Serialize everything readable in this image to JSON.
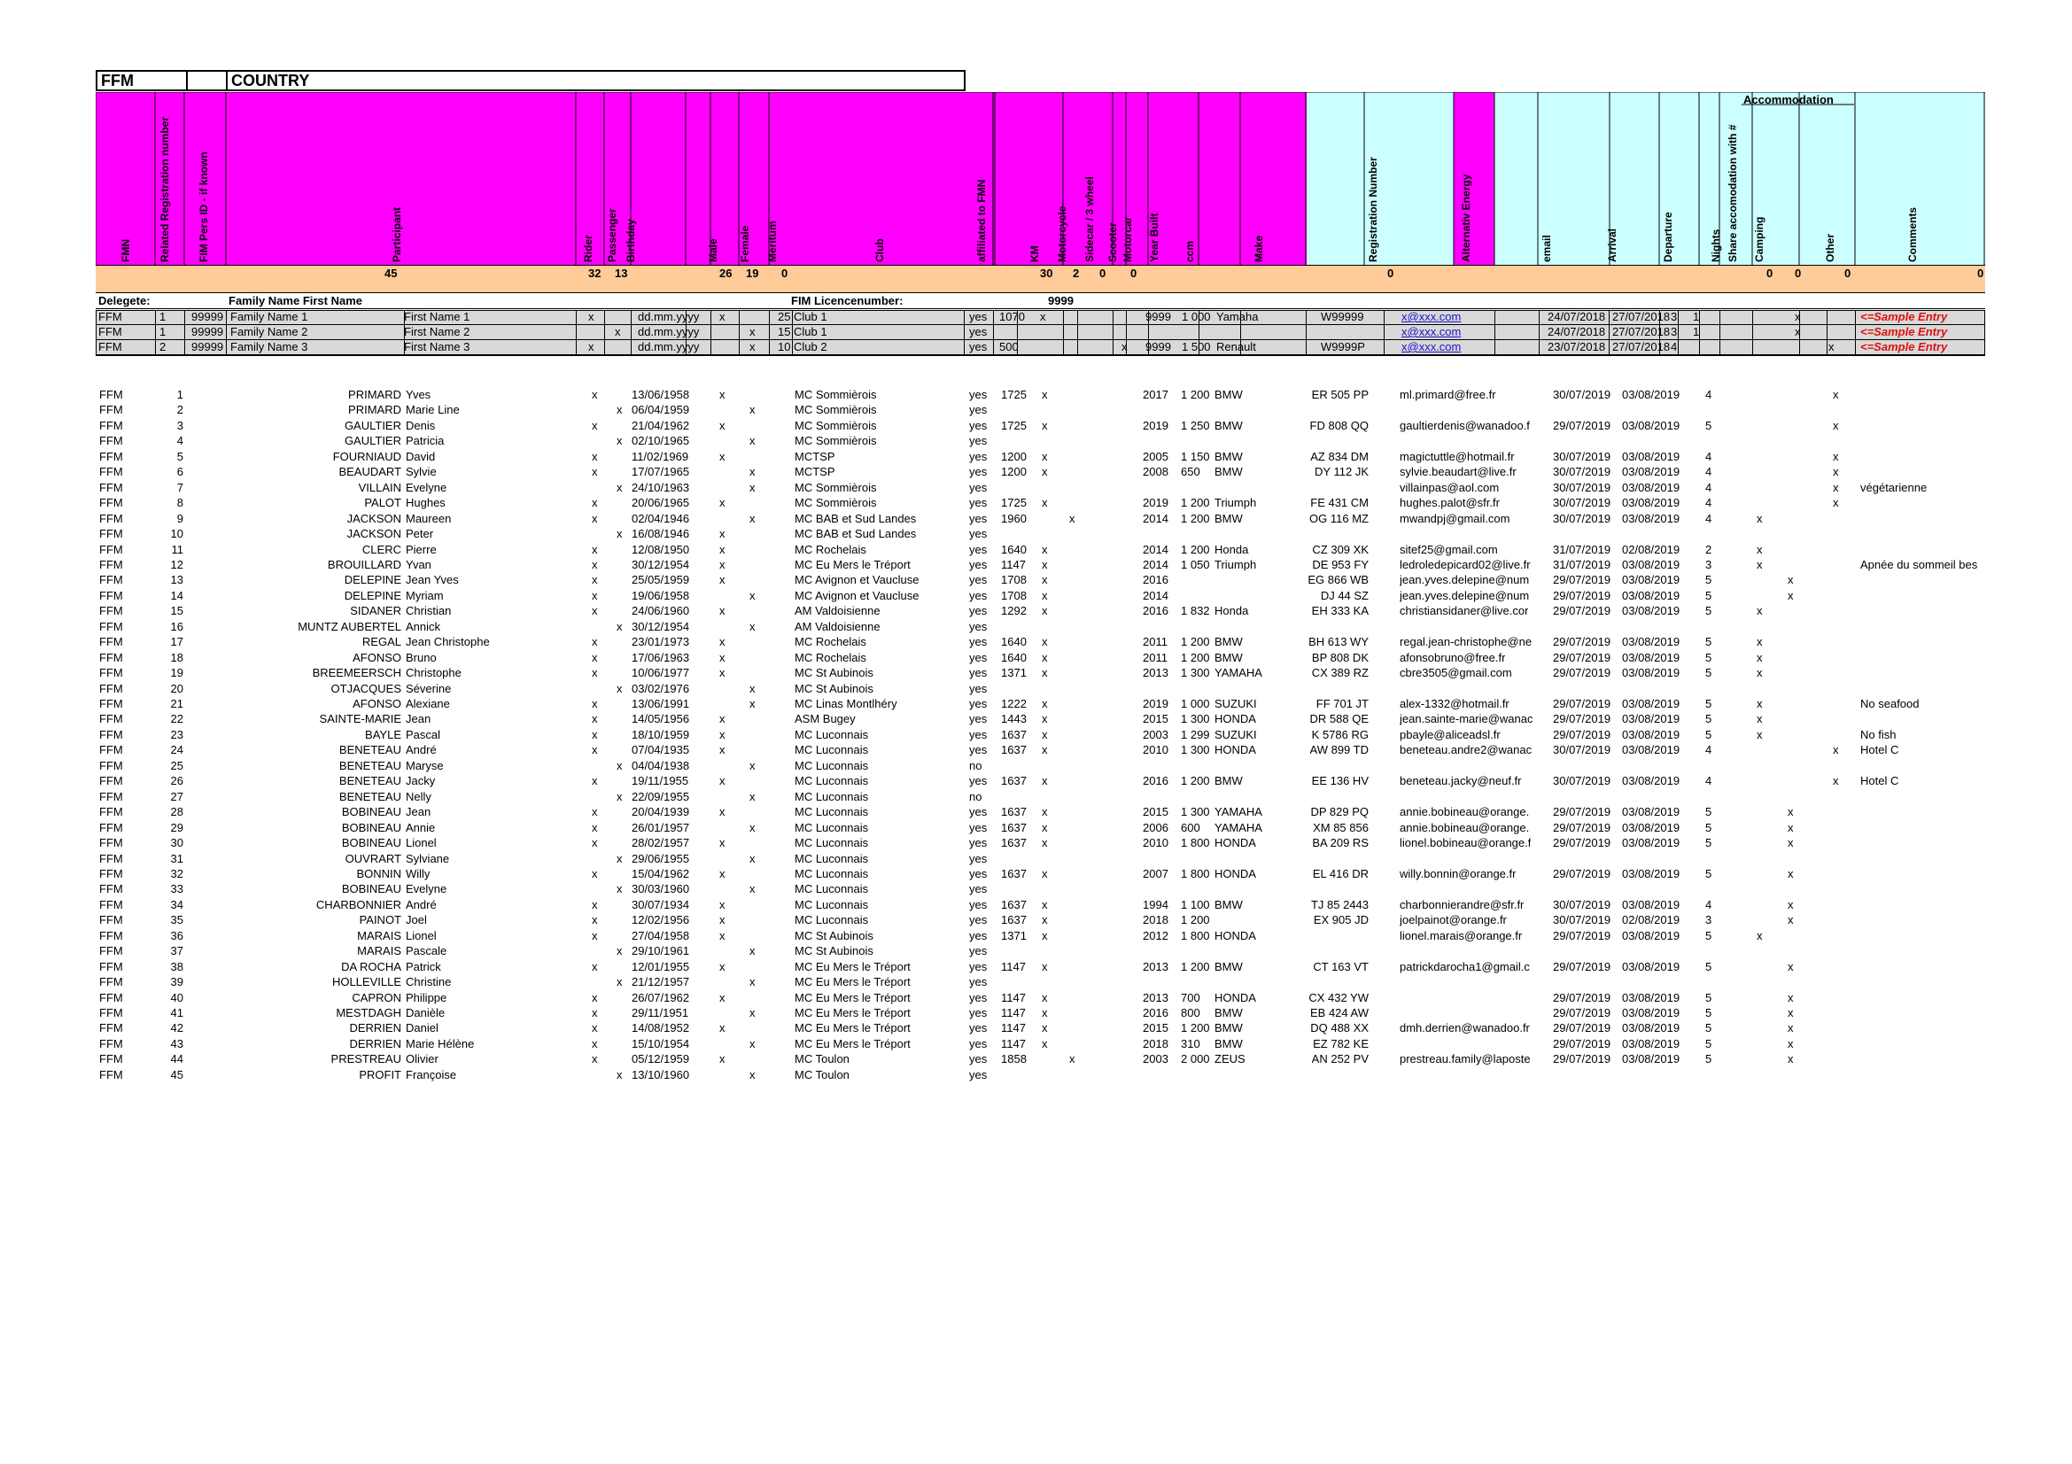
{
  "title_bar": {
    "fed": "FFM",
    "country": "COUNTRY"
  },
  "headers": [
    "FMN",
    "Related Registration number",
    "FIM Pers ID - if known",
    "Participant",
    "Rider",
    "Passenger",
    "Birthday",
    "Male",
    "Female",
    "Meritum",
    "Club",
    "affiliated to FMN",
    "KM",
    "Motorcycle",
    "Sidecar / 3 wheel",
    "Scooter",
    "Motorcar",
    "Year Built",
    "ccm",
    "Make",
    "Registration Number",
    "Alternativ Energy",
    "email",
    "Arrival",
    "Departure",
    "Nights",
    "Share accomodation with #",
    "Camping",
    "Other",
    "Comments"
  ],
  "accommodation_label": "Accommodation",
  "sums": {
    "participant": "45",
    "rider": "32",
    "passenger": "13",
    "male": "26",
    "female": "19",
    "meritum": "0",
    "motorcycle": "30",
    "sidecar": "2",
    "scooter": "0",
    "motorcar": "0",
    "altenergy": "0",
    "camping": "0",
    "hotel": "0",
    "other": "0",
    "last": "0"
  },
  "delegate_row": {
    "label": "Delegete:",
    "name_label": "Family Name First Name",
    "fim_label": "FIM Licencenumber:",
    "fim_value": "9999"
  },
  "samples": [
    {
      "fed": "FFM",
      "num": "1",
      "fimid": "99999",
      "last": "Family Name 1",
      "first": "First Name 1",
      "rider": "x",
      "pass": "",
      "bday": "dd.mm.yyyy",
      "male": "x",
      "female": "",
      "meritum": "25",
      "club": "Club 1",
      "aff": "yes",
      "km": "1070",
      "moto": "x",
      "side": "",
      "scoot": "",
      "car": "",
      "year": "9999",
      "ccm": "1 000",
      "make": "Yamaha",
      "reg": "W99999",
      "email": "x@xxx.com",
      "arr": "24/07/2018",
      "dep": "27/07/2018",
      "nights": "3",
      "share": "1",
      "camp": "",
      "hotel": "x",
      "other": "",
      "comment": "<=Sample Entry"
    },
    {
      "fed": "FFM",
      "num": "1",
      "fimid": "99999",
      "last": "Family Name 2",
      "first": "First Name 2",
      "rider": "",
      "pass": "x",
      "bday": "dd.mm.yyyy",
      "male": "",
      "female": "x",
      "meritum": "15",
      "club": "Club 1",
      "aff": "yes",
      "km": "",
      "moto": "",
      "side": "",
      "scoot": "",
      "car": "",
      "year": "",
      "ccm": "",
      "make": "",
      "reg": "",
      "email": "x@xxx.com",
      "arr": "24/07/2018",
      "dep": "27/07/2018",
      "nights": "3",
      "share": "1",
      "camp": "",
      "hotel": "x",
      "other": "",
      "comment": "<=Sample Entry"
    },
    {
      "fed": "FFM",
      "num": "2",
      "fimid": "99999",
      "last": "Family Name 3",
      "first": "First Name 3",
      "rider": "x",
      "pass": "",
      "bday": "dd.mm.yyyy",
      "male": "",
      "female": "x",
      "meritum": "10",
      "club": "Club 2",
      "aff": "yes",
      "km": "500",
      "moto": "",
      "side": "",
      "scoot": "",
      "car": "x",
      "year": "9999",
      "ccm": "1 500",
      "make": "Renault",
      "reg": "W9999P",
      "email": "x@xxx.com",
      "arr": "23/07/2018",
      "dep": "27/07/2018",
      "nights": "4",
      "share": "",
      "camp": "",
      "hotel": "",
      "other": "x",
      "comment": "<=Sample Entry"
    }
  ],
  "rows": [
    [
      "FFM",
      "1",
      "PRIMARD",
      "Yves",
      "x",
      "",
      "13/06/1958",
      "x",
      "",
      "MC Sommièrois",
      "yes",
      "1725",
      "x",
      "",
      "2017",
      "1 200",
      "BMW",
      "ER 505 PP",
      "ml.primard@free.fr",
      "30/07/2019",
      "03/08/2019",
      "4",
      "",
      "",
      "x",
      ""
    ],
    [
      "FFM",
      "2",
      "PRIMARD",
      "Marie Line",
      "",
      "x",
      "06/04/1959",
      "",
      "x",
      "MC Sommièrois",
      "yes",
      "",
      "",
      "",
      "",
      "",
      "",
      "",
      "",
      "",
      "",
      "",
      "",
      "",
      "",
      ""
    ],
    [
      "FFM",
      "3",
      "GAULTIER",
      "Denis",
      "x",
      "",
      "21/04/1962",
      "x",
      "",
      "MC Sommièrois",
      "yes",
      "1725",
      "x",
      "",
      "2019",
      "1 250",
      "BMW",
      "FD 808 QQ",
      "gaultierdenis@wanadoo.f",
      "29/07/2019",
      "03/08/2019",
      "5",
      "",
      "",
      "x",
      ""
    ],
    [
      "FFM",
      "4",
      "GAULTIER",
      "Patricia",
      "",
      "x",
      "02/10/1965",
      "",
      "x",
      "MC Sommièrois",
      "yes",
      "",
      "",
      "",
      "",
      "",
      "",
      "",
      "",
      "",
      "",
      "",
      "",
      "",
      "",
      ""
    ],
    [
      "FFM",
      "5",
      "FOURNIAUD",
      "David",
      "x",
      "",
      "11/02/1969",
      "x",
      "",
      "MCTSP",
      "yes",
      "1200",
      "x",
      "",
      "2005",
      "1 150",
      "BMW",
      "AZ 834 DM",
      "magictuttle@hotmail.fr",
      "30/07/2019",
      "03/08/2019",
      "4",
      "",
      "",
      "x",
      ""
    ],
    [
      "FFM",
      "6",
      "BEAUDART",
      "Sylvie",
      "x",
      "",
      "17/07/1965",
      "",
      "x",
      "MCTSP",
      "yes",
      "1200",
      "x",
      "",
      "2008",
      "650",
      "BMW",
      "DY 112 JK",
      "sylvie.beaudart@live.fr",
      "30/07/2019",
      "03/08/2019",
      "4",
      "",
      "",
      "x",
      ""
    ],
    [
      "FFM",
      "7",
      "VILLAIN",
      "Evelyne",
      "",
      "x",
      "24/10/1963",
      "",
      "x",
      "MC Sommièrois",
      "yes",
      "",
      "",
      "",
      "",
      "",
      "",
      "",
      "villainpas@aol.com",
      "30/07/2019",
      "03/08/2019",
      "4",
      "",
      "",
      "x",
      "végétarienne"
    ],
    [
      "FFM",
      "8",
      "PALOT",
      "Hughes",
      "x",
      "",
      "20/06/1965",
      "x",
      "",
      "MC Sommièrois",
      "yes",
      "1725",
      "x",
      "",
      "2019",
      "1 200",
      "Triumph",
      "FE 431 CM",
      "hughes.palot@sfr.fr",
      "30/07/2019",
      "03/08/2019",
      "4",
      "",
      "",
      "x",
      ""
    ],
    [
      "FFM",
      "9",
      "JACKSON",
      "Maureen",
      "x",
      "",
      "02/04/1946",
      "",
      "x",
      "MC BAB et Sud Landes",
      "yes",
      "1960",
      "",
      "x",
      "2014",
      "1 200",
      "BMW",
      "OG 116 MZ",
      "mwandpj@gmail.com",
      "30/07/2019",
      "03/08/2019",
      "4",
      "x",
      "",
      "",
      ""
    ],
    [
      "FFM",
      "10",
      "JACKSON",
      "Peter",
      "",
      "x",
      "16/08/1946",
      "x",
      "",
      "MC BAB et Sud Landes",
      "yes",
      "",
      "",
      "",
      "",
      "",
      "",
      "",
      "",
      "",
      "",
      "",
      "",
      "",
      "",
      ""
    ],
    [
      "FFM",
      "11",
      "CLERC",
      "Pierre",
      "x",
      "",
      "12/08/1950",
      "x",
      "",
      "MC Rochelais",
      "yes",
      "1640",
      "x",
      "",
      "2014",
      "1 200",
      "Honda",
      "CZ 309 XK",
      "sitef25@gmail.com",
      "31/07/2019",
      "02/08/2019",
      "2",
      "x",
      "",
      "",
      ""
    ],
    [
      "FFM",
      "12",
      "BROUILLARD",
      "Yvan",
      "x",
      "",
      "30/12/1954",
      "x",
      "",
      "MC Eu Mers le Tréport",
      "yes",
      "1147",
      "x",
      "",
      "2014",
      "1 050",
      "Triumph",
      "DE 953 FY",
      "ledroledepicard02@live.fr",
      "31/07/2019",
      "03/08/2019",
      "3",
      "x",
      "",
      "",
      "Apnée du sommeil bes"
    ],
    [
      "FFM",
      "13",
      "DELEPINE",
      "Jean Yves",
      "x",
      "",
      "25/05/1959",
      "x",
      "",
      "MC Avignon et Vaucluse",
      "yes",
      "1708",
      "x",
      "",
      "2016",
      "",
      "",
      "EG 866 WB",
      "jean.yves.delepine@num",
      "29/07/2019",
      "03/08/2019",
      "5",
      "",
      "x",
      "",
      ""
    ],
    [
      "FFM",
      "14",
      "DELEPINE",
      "Myriam",
      "x",
      "",
      "19/06/1958",
      "",
      "x",
      "MC Avignon et Vaucluse",
      "yes",
      "1708",
      "x",
      "",
      "2014",
      "",
      "",
      "DJ 44 SZ",
      "jean.yves.delepine@num",
      "29/07/2019",
      "03/08/2019",
      "5",
      "",
      "x",
      "",
      ""
    ],
    [
      "FFM",
      "15",
      "SIDANER",
      "Christian",
      "x",
      "",
      "24/06/1960",
      "x",
      "",
      "AM Valdoisienne",
      "yes",
      "1292",
      "x",
      "",
      "2016",
      "1 832",
      "Honda",
      "EH 333 KA",
      "christiansidaner@live.cor",
      "29/07/2019",
      "03/08/2019",
      "5",
      "x",
      "",
      "",
      ""
    ],
    [
      "FFM",
      "16",
      "MUNTZ AUBERTEL",
      "Annick",
      "",
      "x",
      "30/12/1954",
      "",
      "x",
      "AM Valdoisienne",
      "yes",
      "",
      "",
      "",
      "",
      "",
      "",
      "",
      "",
      "",
      "",
      "",
      "",
      "",
      "",
      ""
    ],
    [
      "FFM",
      "17",
      "REGAL",
      "Jean Christophe",
      "x",
      "",
      "23/01/1973",
      "x",
      "",
      "MC Rochelais",
      "yes",
      "1640",
      "x",
      "",
      "2011",
      "1 200",
      "BMW",
      "BH 613 WY",
      "regal.jean-christophe@ne",
      "29/07/2019",
      "03/08/2019",
      "5",
      "x",
      "",
      "",
      ""
    ],
    [
      "FFM",
      "18",
      "AFONSO",
      "Bruno",
      "x",
      "",
      "17/06/1963",
      "x",
      "",
      "MC Rochelais",
      "yes",
      "1640",
      "x",
      "",
      "2011",
      "1 200",
      "BMW",
      "BP 808 DK",
      "afonsobruno@free.fr",
      "29/07/2019",
      "03/08/2019",
      "5",
      "x",
      "",
      "",
      ""
    ],
    [
      "FFM",
      "19",
      "BREEMEERSCH",
      "Christophe",
      "x",
      "",
      "10/06/1977",
      "x",
      "",
      "MC St Aubinois",
      "yes",
      "1371",
      "x",
      "",
      "2013",
      "1 300",
      "YAMAHA",
      "CX 389 RZ",
      "cbre3505@gmail.com",
      "29/07/2019",
      "03/08/2019",
      "5",
      "x",
      "",
      "",
      ""
    ],
    [
      "FFM",
      "20",
      "OTJACQUES",
      "Séverine",
      "",
      "x",
      "03/02/1976",
      "",
      "x",
      "MC St Aubinois",
      "yes",
      "",
      "",
      "",
      "",
      "",
      "",
      "",
      "",
      "",
      "",
      "",
      "",
      "",
      "",
      ""
    ],
    [
      "FFM",
      "21",
      "AFONSO",
      "Alexiane",
      "x",
      "",
      "13/06/1991",
      "",
      "x",
      "MC Linas Montlhéry",
      "yes",
      "1222",
      "x",
      "",
      "2019",
      "1 000",
      "SUZUKI",
      "FF 701 JT",
      "alex-1332@hotmail.fr",
      "29/07/2019",
      "03/08/2019",
      "5",
      "x",
      "",
      "",
      "No seafood"
    ],
    [
      "FFM",
      "22",
      "SAINTE-MARIE",
      "Jean",
      "x",
      "",
      "14/05/1956",
      "x",
      "",
      "ASM Bugey",
      "yes",
      "1443",
      "x",
      "",
      "2015",
      "1 300",
      "HONDA",
      "DR 588 QE",
      "jean.sainte-marie@wanac",
      "29/07/2019",
      "03/08/2019",
      "5",
      "x",
      "",
      "",
      ""
    ],
    [
      "FFM",
      "23",
      "BAYLE",
      "Pascal",
      "x",
      "",
      "18/10/1959",
      "x",
      "",
      "MC Luconnais",
      "yes",
      "1637",
      "x",
      "",
      "2003",
      "1 299",
      "SUZUKI",
      "K 5786 RG",
      "pbayle@aliceadsl.fr",
      "29/07/2019",
      "03/08/2019",
      "5",
      "x",
      "",
      "",
      "No fish"
    ],
    [
      "FFM",
      "24",
      "BENETEAU",
      "André",
      "x",
      "",
      "07/04/1935",
      "x",
      "",
      "MC Luconnais",
      "yes",
      "1637",
      "x",
      "",
      "2010",
      "1 300",
      "HONDA",
      "AW 899 TD",
      "beneteau.andre2@wanac",
      "30/07/2019",
      "03/08/2019",
      "4",
      "",
      "",
      "x",
      "Hotel C"
    ],
    [
      "FFM",
      "25",
      "BENETEAU",
      "Maryse",
      "",
      "x",
      "04/04/1938",
      "",
      "x",
      "MC Luconnais",
      "no",
      "",
      "",
      "",
      "",
      "",
      "",
      "",
      "",
      "",
      "",
      "",
      "",
      "",
      "",
      ""
    ],
    [
      "FFM",
      "26",
      "BENETEAU",
      "Jacky",
      "x",
      "",
      "19/11/1955",
      "x",
      "",
      "MC Luconnais",
      "yes",
      "1637",
      "x",
      "",
      "2016",
      "1 200",
      "BMW",
      "EE 136 HV",
      "beneteau.jacky@neuf.fr",
      "30/07/2019",
      "03/08/2019",
      "4",
      "",
      "",
      "x",
      "Hotel C"
    ],
    [
      "FFM",
      "27",
      "BENETEAU",
      "Nelly",
      "",
      "x",
      "22/09/1955",
      "",
      "x",
      "MC Luconnais",
      "no",
      "",
      "",
      "",
      "",
      "",
      "",
      "",
      "",
      "",
      "",
      "",
      "",
      "",
      "",
      ""
    ],
    [
      "FFM",
      "28",
      "BOBINEAU",
      "Jean",
      "x",
      "",
      "20/04/1939",
      "x",
      "",
      "MC Luconnais",
      "yes",
      "1637",
      "x",
      "",
      "2015",
      "1 300",
      "YAMAHA",
      "DP 829 PQ",
      "annie.bobineau@orange.",
      "29/07/2019",
      "03/08/2019",
      "5",
      "",
      "x",
      "",
      ""
    ],
    [
      "FFM",
      "29",
      "BOBINEAU",
      "Annie",
      "x",
      "",
      "26/01/1957",
      "",
      "x",
      "MC Luconnais",
      "yes",
      "1637",
      "x",
      "",
      "2006",
      "600",
      "YAMAHA",
      "856 XM 85",
      "annie.bobineau@orange.",
      "29/07/2019",
      "03/08/2019",
      "5",
      "",
      "x",
      "",
      ""
    ],
    [
      "FFM",
      "30",
      "BOBINEAU",
      "Lionel",
      "x",
      "",
      "28/02/1957",
      "x",
      "",
      "MC Luconnais",
      "yes",
      "1637",
      "x",
      "",
      "2010",
      "1 800",
      "HONDA",
      "BA 209 RS",
      "lionel.bobineau@orange.f",
      "29/07/2019",
      "03/08/2019",
      "5",
      "",
      "x",
      "",
      ""
    ],
    [
      "FFM",
      "31",
      "OUVRART",
      "Sylviane",
      "",
      "x",
      "29/06/1955",
      "",
      "x",
      "MC Luconnais",
      "yes",
      "",
      "",
      "",
      "",
      "",
      "",
      "",
      "",
      "",
      "",
      "",
      "",
      "",
      "",
      ""
    ],
    [
      "FFM",
      "32",
      "BONNIN",
      "Willy",
      "x",
      "",
      "15/04/1962",
      "x",
      "",
      "MC Luconnais",
      "yes",
      "1637",
      "x",
      "",
      "2007",
      "1 800",
      "HONDA",
      "EL 416 DR",
      "willy.bonnin@orange.fr",
      "29/07/2019",
      "03/08/2019",
      "5",
      "",
      "x",
      "",
      ""
    ],
    [
      "FFM",
      "33",
      "BOBINEAU",
      "Evelyne",
      "",
      "x",
      "30/03/1960",
      "",
      "x",
      "MC Luconnais",
      "yes",
      "",
      "",
      "",
      "",
      "",
      "",
      "",
      "",
      "",
      "",
      "",
      "",
      "",
      "",
      ""
    ],
    [
      "FFM",
      "34",
      "CHARBONNIER",
      "André",
      "x",
      "",
      "30/07/1934",
      "x",
      "",
      "MC Luconnais",
      "yes",
      "1637",
      "x",
      "",
      "1994",
      "1 100",
      "BMW",
      "2443 TJ 85",
      "charbonnierandre@sfr.fr",
      "30/07/2019",
      "03/08/2019",
      "4",
      "",
      "x",
      "",
      ""
    ],
    [
      "FFM",
      "35",
      "PAINOT",
      "Joel",
      "x",
      "",
      "12/02/1956",
      "x",
      "",
      "MC Luconnais",
      "yes",
      "1637",
      "x",
      "",
      "2018",
      "1 200",
      "",
      "EX 905 JD",
      "joelpainot@orange.fr",
      "30/07/2019",
      "02/08/2019",
      "3",
      "",
      "x",
      "",
      ""
    ],
    [
      "FFM",
      "36",
      "MARAIS",
      "Lionel",
      "x",
      "",
      "27/04/1958",
      "x",
      "",
      "MC St Aubinois",
      "yes",
      "1371",
      "x",
      "",
      "2012",
      "1 800",
      "HONDA",
      "",
      "lionel.marais@orange.fr",
      "29/07/2019",
      "03/08/2019",
      "5",
      "x",
      "",
      "",
      ""
    ],
    [
      "FFM",
      "37",
      "MARAIS",
      "Pascale",
      "",
      "x",
      "29/10/1961",
      "",
      "x",
      "MC St Aubinois",
      "yes",
      "",
      "",
      "",
      "",
      "",
      "",
      "",
      "",
      "",
      "",
      "",
      "",
      "",
      "",
      ""
    ],
    [
      "FFM",
      "38",
      "DA ROCHA",
      "Patrick",
      "x",
      "",
      "12/01/1955",
      "x",
      "",
      "MC Eu Mers le Tréport",
      "yes",
      "1147",
      "x",
      "",
      "2013",
      "1 200",
      "BMW",
      "CT 163 VT",
      "patrickdarocha1@gmail.c",
      "29/07/2019",
      "03/08/2019",
      "5",
      "",
      "x",
      "",
      ""
    ],
    [
      "FFM",
      "39",
      "HOLLEVILLE",
      "Christine",
      "",
      "x",
      "21/12/1957",
      "",
      "x",
      "MC Eu Mers le Tréport",
      "yes",
      "",
      "",
      "",
      "",
      "",
      "",
      "",
      "",
      "",
      "",
      "",
      "",
      "",
      "",
      ""
    ],
    [
      "FFM",
      "40",
      "CAPRON",
      "Philippe",
      "x",
      "",
      "26/07/1962",
      "x",
      "",
      "MC Eu Mers le Tréport",
      "yes",
      "1147",
      "x",
      "",
      "2013",
      "700",
      "HONDA",
      "CX 432 YW",
      "",
      "29/07/2019",
      "03/08/2019",
      "5",
      "",
      "x",
      "",
      ""
    ],
    [
      "FFM",
      "41",
      "MESTDAGH",
      "Danièle",
      "x",
      "",
      "29/11/1951",
      "",
      "x",
      "MC Eu Mers le Tréport",
      "yes",
      "1147",
      "x",
      "",
      "2016",
      "800",
      "BMW",
      "EB 424 AW",
      "",
      "29/07/2019",
      "03/08/2019",
      "5",
      "",
      "x",
      "",
      ""
    ],
    [
      "FFM",
      "42",
      "DERRIEN",
      "Daniel",
      "x",
      "",
      "14/08/1952",
      "x",
      "",
      "MC Eu Mers le Tréport",
      "yes",
      "1147",
      "x",
      "",
      "2015",
      "1 200",
      "BMW",
      "DQ 488 XX",
      "dmh.derrien@wanadoo.fr",
      "29/07/2019",
      "03/08/2019",
      "5",
      "",
      "x",
      "",
      ""
    ],
    [
      "FFM",
      "43",
      "DERRIEN",
      "Marie Hélène",
      "x",
      "",
      "15/10/1954",
      "",
      "x",
      "MC Eu Mers le Tréport",
      "yes",
      "1147",
      "x",
      "",
      "2018",
      "310",
      "BMW",
      "EZ 782 KE",
      "",
      "29/07/2019",
      "03/08/2019",
      "5",
      "",
      "x",
      "",
      ""
    ],
    [
      "FFM",
      "44",
      "PRESTREAU",
      "Olivier",
      "x",
      "",
      "05/12/1959",
      "x",
      "",
      "MC Toulon",
      "yes",
      "1858",
      "",
      "x",
      "2003",
      "2 000",
      "ZEUS",
      "AN 252 PV",
      "prestreau.family@laposte",
      "29/07/2019",
      "03/08/2019",
      "5",
      "",
      "x",
      "",
      ""
    ],
    [
      "FFM",
      "45",
      "PROFIT",
      "Françoise",
      "",
      "x",
      "13/10/1960",
      "",
      "x",
      "MC Toulon",
      "yes",
      "",
      "",
      "",
      "",
      "",
      "",
      "",
      "",
      "",
      "",
      "",
      "",
      "",
      "",
      ""
    ]
  ]
}
